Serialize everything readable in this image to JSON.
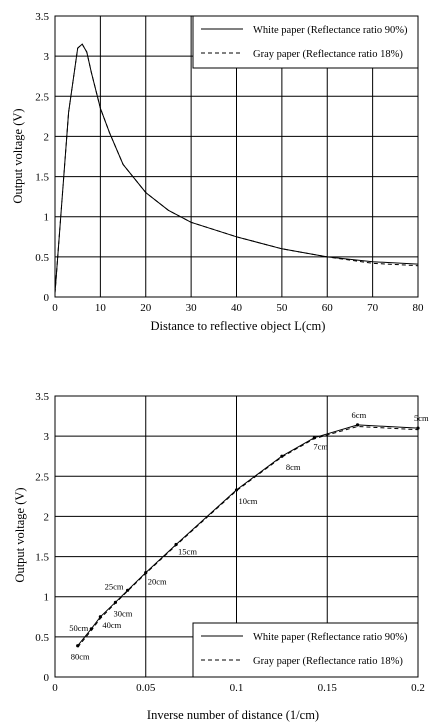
{
  "chart_data": [
    {
      "type": "line",
      "xlabel": "Distance to reflective object L(cm)",
      "ylabel": "Output voltage (V)",
      "xlim": [
        0,
        80
      ],
      "ylim": [
        0,
        3.5
      ],
      "xticks": [
        "0",
        "10",
        "20",
        "30",
        "40",
        "50",
        "60",
        "70",
        "80"
      ],
      "yticks": [
        "0",
        "0.5",
        "1",
        "1.5",
        "2",
        "2.5",
        "3",
        "3.5"
      ],
      "grid": true,
      "legend_position": "top-right",
      "series": [
        {
          "name": "White paper (Reflectance ratio 90%)",
          "style": "solid",
          "x": [
            0,
            3,
            5,
            6,
            7,
            8,
            10,
            12,
            15,
            20,
            25,
            30,
            40,
            50,
            60,
            70,
            80
          ],
          "y": [
            0.05,
            2.3,
            3.1,
            3.15,
            3.05,
            2.8,
            2.35,
            2.05,
            1.65,
            1.3,
            1.08,
            0.93,
            0.75,
            0.6,
            0.5,
            0.44,
            0.41
          ]
        },
        {
          "name": "Gray paper (Reflectance ratio 18%)",
          "style": "dashed",
          "x": [
            0,
            3,
            5,
            6,
            7,
            8,
            10,
            12,
            15,
            20,
            25,
            30,
            40,
            50,
            60,
            70,
            80
          ],
          "y": [
            0.05,
            2.3,
            3.1,
            3.15,
            3.05,
            2.8,
            2.35,
            2.05,
            1.65,
            1.3,
            1.08,
            0.93,
            0.75,
            0.6,
            0.5,
            0.42,
            0.39
          ]
        }
      ]
    },
    {
      "type": "line",
      "xlabel": "Inverse number of distance (1/cm)",
      "ylabel": "Output voltage (V)",
      "xlim": [
        0,
        0.2
      ],
      "ylim": [
        0,
        3.5
      ],
      "xticks": [
        "0",
        "0.05",
        "0.1",
        "0.15",
        "0.2"
      ],
      "yticks": [
        "0",
        "0.5",
        "1",
        "1.5",
        "2",
        "2.5",
        "3",
        "3.5"
      ],
      "grid": true,
      "legend_position": "bottom-right",
      "series": [
        {
          "name": "White paper (Reflectance ratio 90%)",
          "style": "solid",
          "x": [
            0.0125,
            0.02,
            0.025,
            0.0333,
            0.04,
            0.05,
            0.0667,
            0.1,
            0.125,
            0.1429,
            0.1667,
            0.2
          ],
          "y": [
            0.39,
            0.6,
            0.75,
            0.93,
            1.08,
            1.3,
            1.65,
            2.33,
            2.75,
            2.98,
            3.14,
            3.1
          ]
        },
        {
          "name": "Gray paper (Reflectance ratio 18%)",
          "style": "dashed",
          "x": [
            0.0125,
            0.02,
            0.025,
            0.0333,
            0.04,
            0.05,
            0.0667,
            0.1,
            0.125,
            0.1429,
            0.1667,
            0.2
          ],
          "y": [
            0.37,
            0.58,
            0.73,
            0.92,
            1.07,
            1.29,
            1.64,
            2.32,
            2.74,
            2.97,
            3.12,
            3.08
          ]
        }
      ],
      "point_labels": [
        {
          "label": "80cm",
          "x": 0.0125,
          "y": 0.39
        },
        {
          "label": "50cm",
          "x": 0.02,
          "y": 0.6
        },
        {
          "label": "40cm",
          "x": 0.025,
          "y": 0.75
        },
        {
          "label": "30cm",
          "x": 0.0333,
          "y": 0.93
        },
        {
          "label": "25cm",
          "x": 0.04,
          "y": 1.08
        },
        {
          "label": "20cm",
          "x": 0.05,
          "y": 1.3
        },
        {
          "label": "15cm",
          "x": 0.0667,
          "y": 1.65
        },
        {
          "label": "10cm",
          "x": 0.1,
          "y": 2.33
        },
        {
          "label": "8cm",
          "x": 0.125,
          "y": 2.75
        },
        {
          "label": "7cm",
          "x": 0.1429,
          "y": 2.98
        },
        {
          "label": "6cm",
          "x": 0.1667,
          "y": 3.14
        },
        {
          "label": "5cm",
          "x": 0.2,
          "y": 3.1
        }
      ]
    }
  ]
}
